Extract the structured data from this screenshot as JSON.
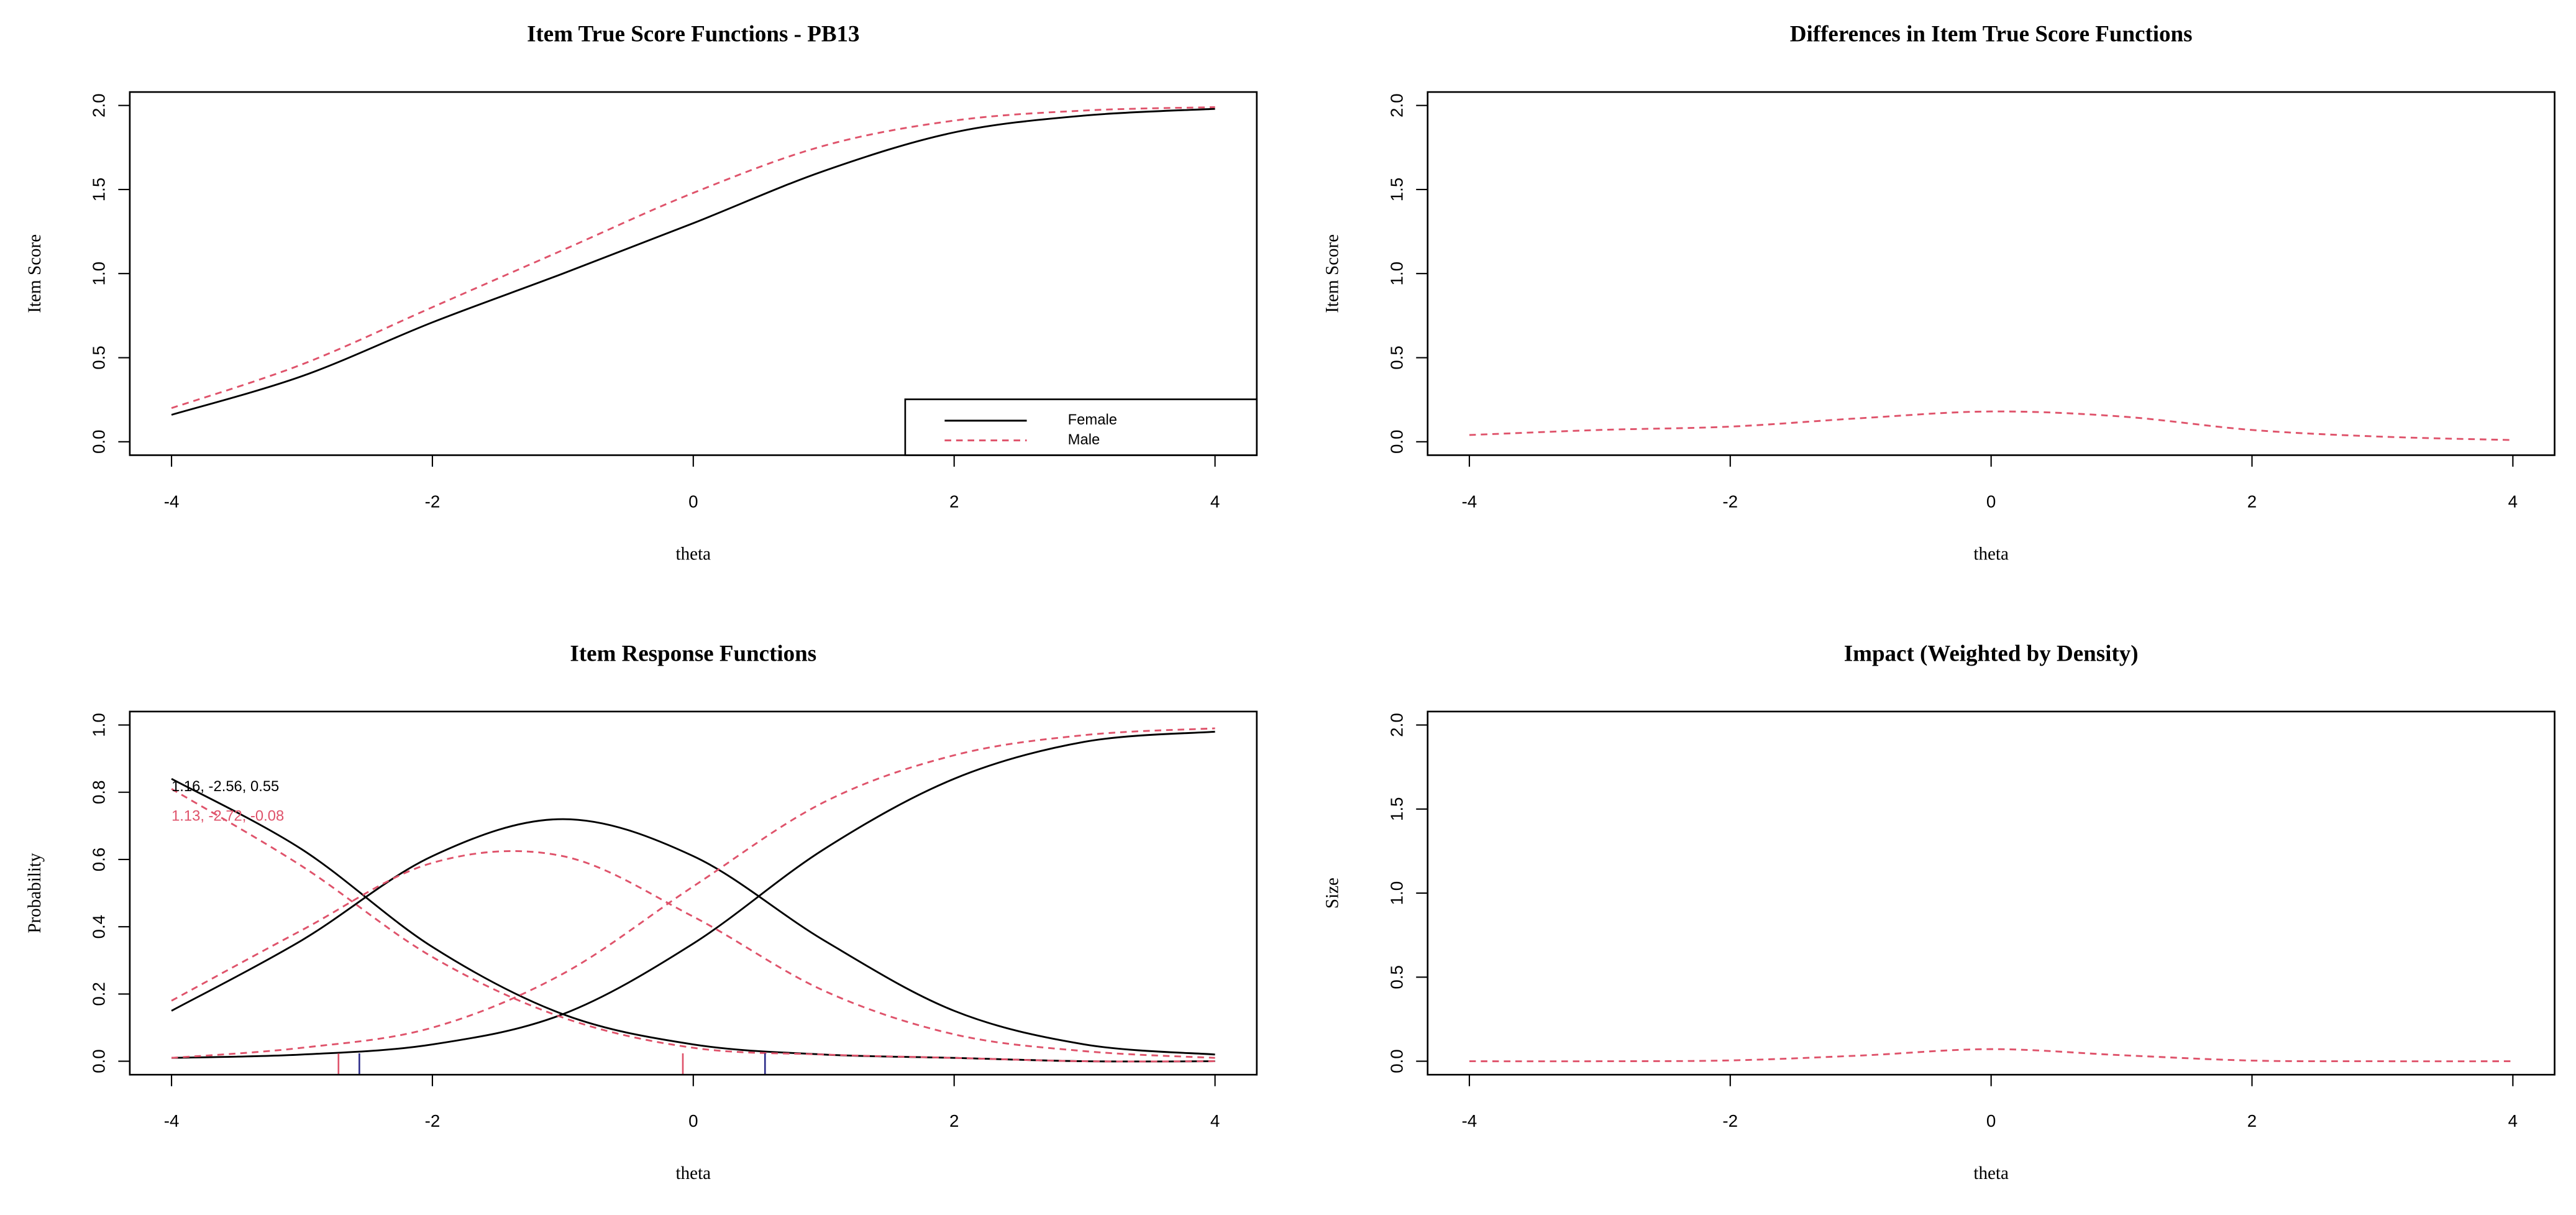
{
  "chart_data": [
    {
      "type": "line",
      "title": "Item True Score Functions - PB13",
      "xlabel": "theta",
      "ylabel": "Item Score",
      "x": [
        -4,
        -3,
        -2,
        -1,
        0,
        1,
        2,
        3,
        4
      ],
      "xlim": [
        -4.32,
        4.32
      ],
      "ylim": [
        -0.08,
        2.08
      ],
      "xticks": [
        -4,
        -2,
        0,
        2,
        4
      ],
      "yticks": [
        {
          "value": 0,
          "label": "0.0"
        },
        {
          "value": 0.5,
          "label": "0.5"
        },
        {
          "value": 1,
          "label": "1.0"
        },
        {
          "value": 1.5,
          "label": "1.5"
        },
        {
          "value": 2,
          "label": "2.0"
        }
      ],
      "legend": "bottom-right",
      "series": [
        {
          "name": "Female",
          "color": "#000000",
          "dashed": false,
          "values": [
            0.16,
            0.39,
            0.71,
            1.0,
            1.3,
            1.61,
            1.84,
            1.94,
            1.98
          ]
        },
        {
          "name": "Male",
          "color": "#DF536B",
          "dashed": true,
          "values": [
            0.2,
            0.46,
            0.8,
            1.14,
            1.48,
            1.76,
            1.91,
            1.97,
            1.99
          ]
        }
      ]
    },
    {
      "type": "line",
      "title": "Differences in Item True Score Functions",
      "xlabel": "theta",
      "ylabel": "Item Score",
      "x": [
        -4,
        -3,
        -2,
        -1,
        0,
        1,
        2,
        3,
        4
      ],
      "xlim": [
        -4.32,
        4.32
      ],
      "ylim": [
        -0.08,
        2.08
      ],
      "xticks": [
        -4,
        -2,
        0,
        2,
        4
      ],
      "yticks": [
        {
          "value": 0,
          "label": "0.0"
        },
        {
          "value": 0.5,
          "label": "0.5"
        },
        {
          "value": 1,
          "label": "1.0"
        },
        {
          "value": 1.5,
          "label": "1.5"
        },
        {
          "value": 2,
          "label": "2.0"
        }
      ],
      "series": [
        {
          "color": "#DF536B",
          "dashed": true,
          "values": [
            0.04,
            0.07,
            0.09,
            0.14,
            0.18,
            0.15,
            0.07,
            0.03,
            0.01
          ]
        }
      ]
    },
    {
      "type": "line",
      "title": "Item Response Functions",
      "xlabel": "theta",
      "ylabel": "Probability",
      "x": [
        -4,
        -3,
        -2,
        -1,
        0,
        1,
        2,
        3,
        4
      ],
      "xlim": [
        -4.32,
        4.32
      ],
      "ylim": [
        -0.04,
        1.04
      ],
      "xticks": [
        -4,
        -2,
        0,
        2,
        4
      ],
      "yticks": [
        {
          "value": 0,
          "label": "0.0"
        },
        {
          "value": 0.2,
          "label": "0.2"
        },
        {
          "value": 0.4,
          "label": "0.4"
        },
        {
          "value": 0.6,
          "label": "0.6"
        },
        {
          "value": 0.8,
          "label": "0.8"
        },
        {
          "value": 1,
          "label": "1.0"
        }
      ],
      "series": [
        {
          "color": "#000000",
          "dashed": false,
          "values": [
            0.84,
            0.63,
            0.34,
            0.14,
            0.05,
            0.02,
            0.01,
            0.0,
            0.0
          ]
        },
        {
          "color": "#000000",
          "dashed": false,
          "values": [
            0.15,
            0.36,
            0.61,
            0.72,
            0.61,
            0.36,
            0.15,
            0.05,
            0.02
          ]
        },
        {
          "color": "#000000",
          "dashed": false,
          "values": [
            0.01,
            0.02,
            0.05,
            0.14,
            0.35,
            0.63,
            0.84,
            0.95,
            0.98
          ]
        },
        {
          "color": "#DF536B",
          "dashed": true,
          "values": [
            0.81,
            0.58,
            0.31,
            0.13,
            0.04,
            0.02,
            0.01,
            0.0,
            0.0
          ]
        },
        {
          "color": "#DF536B",
          "dashed": true,
          "values": [
            0.18,
            0.39,
            0.59,
            0.61,
            0.43,
            0.21,
            0.08,
            0.03,
            0.01
          ]
        },
        {
          "color": "#DF536B",
          "dashed": true,
          "values": [
            0.01,
            0.04,
            0.1,
            0.26,
            0.52,
            0.77,
            0.91,
            0.97,
            0.99
          ]
        }
      ],
      "annotations": [
        {
          "text": "1.16, -2.56, 0.55",
          "color": "#000000"
        },
        {
          "text": "1.13, -2.72, -0.08",
          "color": "#DF536B"
        }
      ],
      "markers": [
        {
          "color": "#2E2E8A",
          "x": [
            -2.56,
            0.55
          ]
        },
        {
          "color": "#DF536B",
          "x": [
            -2.72,
            -0.08
          ]
        }
      ]
    },
    {
      "type": "line",
      "title": "Impact (Weighted by Density)",
      "xlabel": "theta",
      "ylabel": "Size",
      "x": [
        -4,
        -3,
        -2,
        -1,
        0,
        1,
        2,
        3,
        4
      ],
      "xlim": [
        -4.32,
        4.32
      ],
      "ylim": [
        -0.08,
        2.08
      ],
      "xticks": [
        -4,
        -2,
        0,
        2,
        4
      ],
      "yticks": [
        {
          "value": 0,
          "label": "0.0"
        },
        {
          "value": 0.5,
          "label": "0.5"
        },
        {
          "value": 1,
          "label": "1.0"
        },
        {
          "value": 1.5,
          "label": "1.5"
        },
        {
          "value": 2,
          "label": "2.0"
        }
      ],
      "series": [
        {
          "color": "#DF536B",
          "dashed": true,
          "values": [
            0.0,
            0.0,
            0.005,
            0.034,
            0.072,
            0.036,
            0.004,
            0.0,
            0.0
          ]
        }
      ]
    }
  ]
}
